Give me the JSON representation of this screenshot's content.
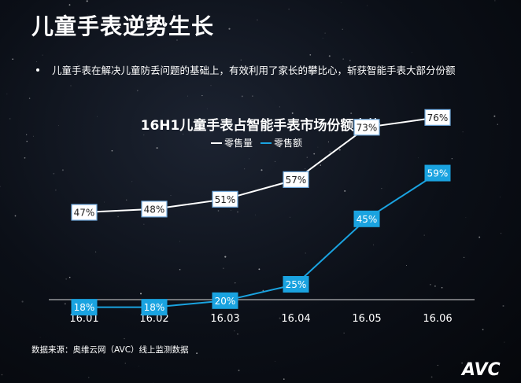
{
  "header": {
    "title": "儿童手表逆势生长",
    "bullet": "儿童手表在解决儿童防丢问题的基础上，有效利用了家长的攀比心，斩获智能手表大部分份额"
  },
  "chart_data": {
    "type": "line",
    "title": "16H1儿童手表占智能手表市场份额走势",
    "categories": [
      "16.01",
      "16.02",
      "16.03",
      "16.04",
      "16.05",
      "16.06"
    ],
    "series": [
      {
        "name": "零售量",
        "color": "#ffffff",
        "values": [
          47,
          48,
          51,
          57,
          73,
          76
        ],
        "labels": [
          "47%",
          "48%",
          "51%",
          "57%",
          "73%",
          "76%"
        ]
      },
      {
        "name": "零售额",
        "color": "#1aa3e0",
        "values": [
          18,
          18,
          20,
          25,
          45,
          59
        ],
        "labels": [
          "18%",
          "18%",
          "20%",
          "25%",
          "45%",
          "59%"
        ]
      }
    ],
    "legend_position": "top",
    "grid": false,
    "unit": "%"
  },
  "footer": {
    "source": "数据来源：奥维云网（AVC）线上监测数据",
    "logo_text": "AVC"
  }
}
